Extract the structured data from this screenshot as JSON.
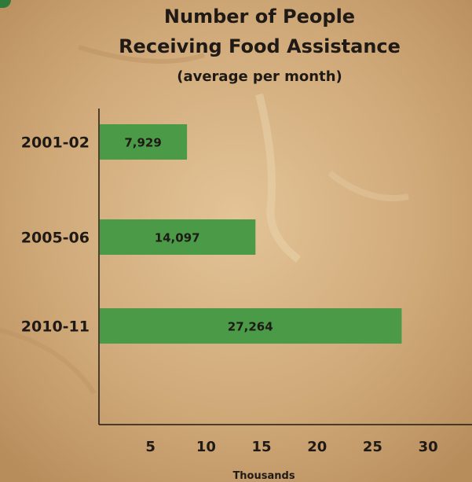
{
  "colors": {
    "bar": "#4a9a48",
    "background": "#c9a373",
    "text": "#1f1a15",
    "axis": "#1f1a15"
  },
  "chart_data": {
    "type": "bar",
    "orientation": "horizontal",
    "title_lines": [
      "Number of People",
      "Receiving Food Assistance"
    ],
    "subtitle": "(average per month)",
    "categories": [
      "2001-02",
      "2005-06",
      "2010-11"
    ],
    "values": [
      7.929,
      14.097,
      27.264
    ],
    "value_labels": [
      "7,929",
      "14,097",
      "27,264"
    ],
    "xlabel": "Thousands",
    "ylabel": "",
    "xticks": [
      5,
      10,
      15,
      20,
      25,
      30
    ],
    "xlim": [
      0,
      33.6
    ],
    "grid": false,
    "legend": "none"
  }
}
